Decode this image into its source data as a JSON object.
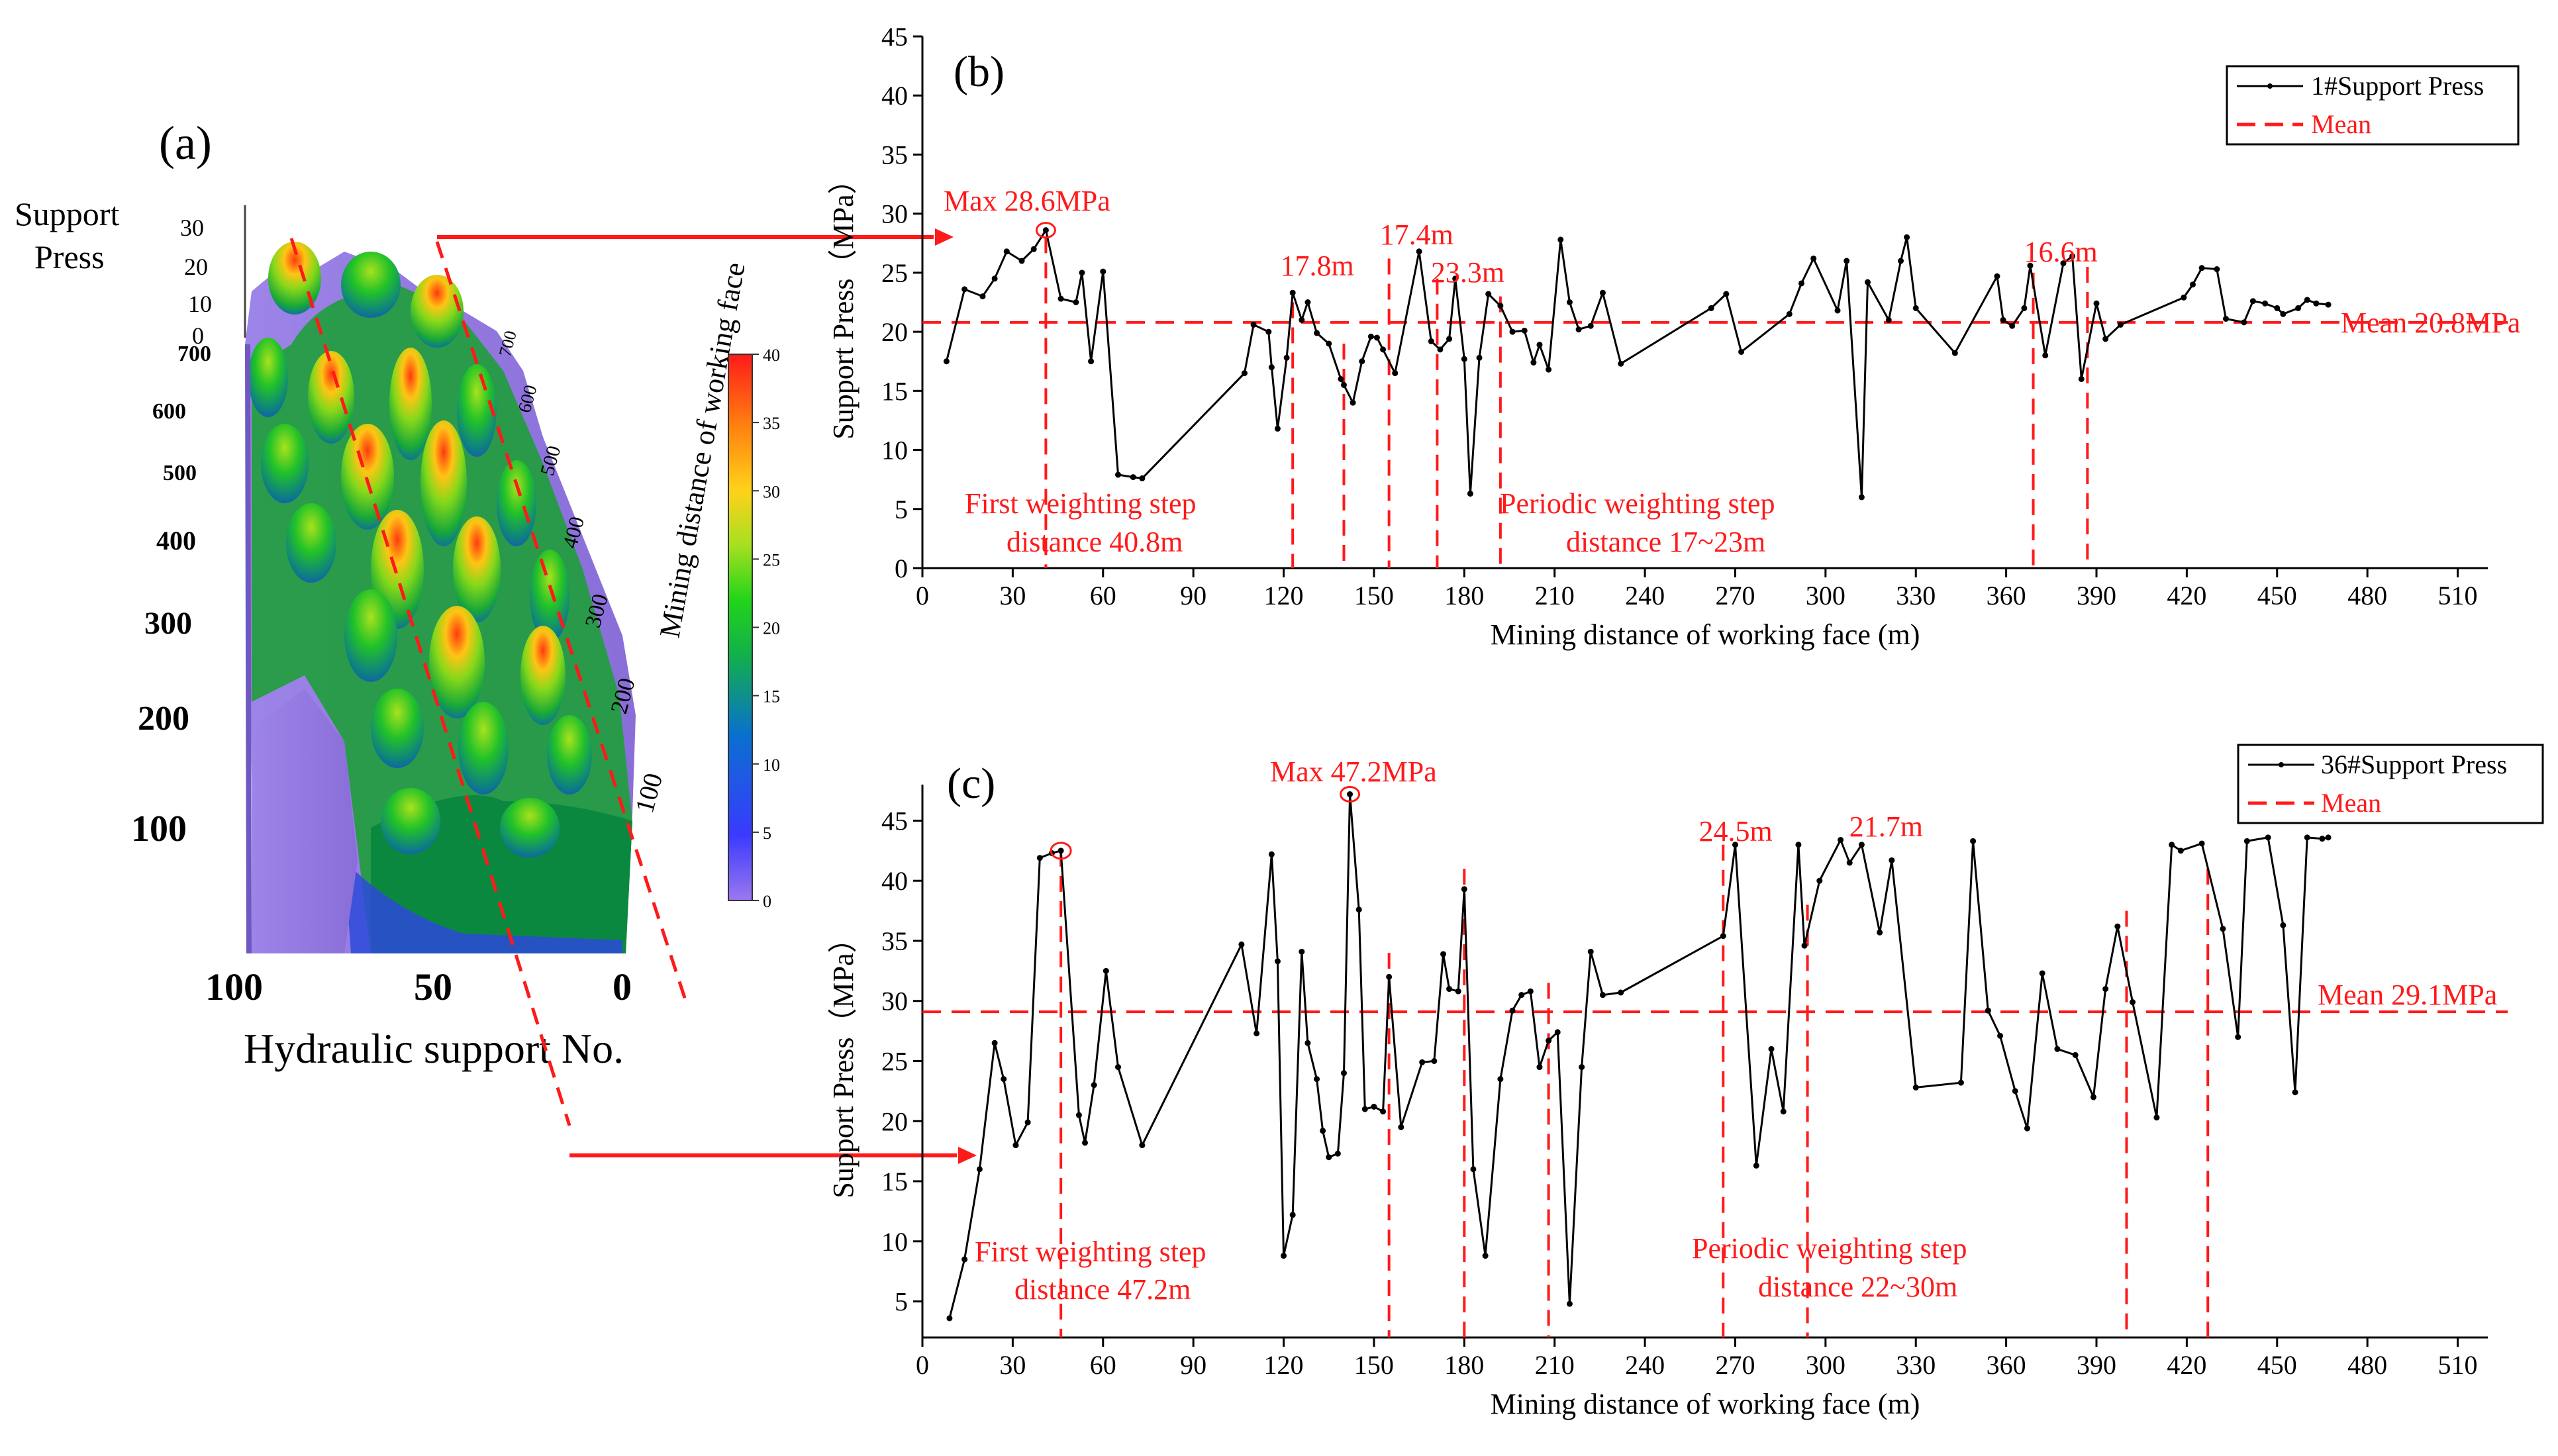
{
  "panel_a": {
    "label": "(a)",
    "z_title_line1": "Support",
    "z_title_line2": "Press",
    "z_ticks": [
      "30",
      "20",
      "10",
      "0"
    ],
    "y_ticks": [
      "700",
      "600",
      "500",
      "400",
      "300",
      "200",
      "100"
    ],
    "depth_ticks": [
      "100",
      "200",
      "300",
      "400",
      "500",
      "600",
      "700"
    ],
    "depth_axis_title": "Mining distance of working face",
    "x_ticks": [
      "100",
      "50",
      "0"
    ],
    "x_axis_title": "Hydraulic support No.",
    "colorbar_ticks": [
      "40",
      "35",
      "30",
      "25",
      "20",
      "15",
      "10",
      "5",
      "0"
    ]
  },
  "chart_data": [
    {
      "type": "line",
      "panel_label": "(b)",
      "xlabel": "Mining distance of working face (m)",
      "ylabel": "Support Press（MPa）",
      "xlim": [
        0,
        520
      ],
      "ylim": [
        0,
        45
      ],
      "xticks": [
        0,
        30,
        60,
        90,
        120,
        150,
        180,
        210,
        240,
        270,
        300,
        330,
        360,
        390,
        420,
        450,
        480,
        510
      ],
      "yticks": [
        0,
        5,
        10,
        15,
        20,
        25,
        30,
        35,
        40,
        45
      ],
      "legend": {
        "position": "top-right",
        "series_label": "1#Support Press",
        "mean_label": "Mean"
      },
      "series": [
        {
          "name": "1#Support Press",
          "x": [
            8,
            14,
            20,
            24,
            28,
            33,
            37,
            41,
            46,
            51,
            53,
            56,
            60,
            65,
            70,
            73,
            107,
            110,
            115,
            116,
            118,
            121,
            123,
            126,
            128,
            131,
            135,
            139,
            140,
            143,
            146,
            149,
            151,
            153,
            157,
            165,
            169,
            172,
            175,
            177,
            180,
            182,
            185,
            188,
            192,
            196,
            200,
            203,
            205,
            208,
            212,
            215,
            218,
            222,
            226,
            232,
            262,
            267,
            272,
            288,
            292,
            296,
            304,
            307,
            312,
            314,
            321,
            325,
            327,
            330,
            343,
            357,
            359,
            362,
            366,
            368,
            373,
            379,
            382,
            385,
            390,
            393,
            398,
            419,
            422,
            425,
            430,
            433,
            439,
            442,
            446,
            450,
            452,
            457,
            460,
            463,
            467
          ],
          "y": [
            17.5,
            23.6,
            23.0,
            24.5,
            26.8,
            26.0,
            27.0,
            28.6,
            22.8,
            22.5,
            25.0,
            17.5,
            25.1,
            7.9,
            7.7,
            7.6,
            16.5,
            20.6,
            20.0,
            17.0,
            11.8,
            17.8,
            23.3,
            21.0,
            22.5,
            19.9,
            19.0,
            16.0,
            15.5,
            14.0,
            17.5,
            19.6,
            19.5,
            18.5,
            16.5,
            26.8,
            19.2,
            18.5,
            19.4,
            24.5,
            17.7,
            6.3,
            17.8,
            23.2,
            22.2,
            20.0,
            20.1,
            17.4,
            18.9,
            16.8,
            27.8,
            22.5,
            20.2,
            20.5,
            23.3,
            17.3,
            22.0,
            23.2,
            18.3,
            21.5,
            24.1,
            26.2,
            21.8,
            26.0,
            6.0,
            24.2,
            21.0,
            26.0,
            28.0,
            22.0,
            18.2,
            24.7,
            21.0,
            20.5,
            22.0,
            25.6,
            18.0,
            25.8,
            26.4,
            16.0,
            22.4,
            19.4,
            20.6,
            22.9,
            24.0,
            25.4,
            25.3,
            21.1,
            20.8,
            22.6,
            22.4,
            22.0,
            21.5,
            22.0,
            22.7,
            22.4,
            22.3
          ]
        }
      ],
      "mean_value": 20.8,
      "vlines_x": [
        41,
        123,
        140,
        155,
        171,
        192,
        369,
        387
      ],
      "annotations": [
        {
          "text": "Max 28.6MPa",
          "x": 41,
          "y": 28.6
        },
        {
          "text": "17.8m",
          "x": 131
        },
        {
          "text": "17.4m",
          "x": 164
        },
        {
          "text": "23.3m",
          "x": 181
        },
        {
          "text": "16.6m",
          "x": 378
        },
        {
          "text": "Mean 20.8MPa"
        },
        {
          "text_line1": "First weighting step",
          "text_line2": "distance 40.8m"
        },
        {
          "text_line1": "Periodic weighting step",
          "text_line2": "distance 17~23m"
        }
      ]
    },
    {
      "type": "line",
      "panel_label": "(c)",
      "xlabel": "Mining distance of working face (m)",
      "ylabel": "Support Press（MPa）",
      "xlim": [
        0,
        520
      ],
      "ylim": [
        2,
        48
      ],
      "xticks": [
        0,
        30,
        60,
        90,
        120,
        150,
        180,
        210,
        240,
        270,
        300,
        330,
        360,
        390,
        420,
        450,
        480,
        510
      ],
      "yticks": [
        5,
        10,
        15,
        20,
        25,
        30,
        35,
        40,
        45
      ],
      "legend": {
        "position": "top-right",
        "series_label": "36#Support Press",
        "mean_label": "Mean"
      },
      "series": [
        {
          "name": "36#Support Press",
          "x": [
            9,
            14,
            19,
            24,
            27,
            31,
            35,
            39,
            43,
            46,
            52,
            54,
            57,
            61,
            65,
            73,
            106,
            111,
            116,
            118,
            120,
            123,
            126,
            128,
            131,
            133,
            135,
            138,
            140,
            142,
            145,
            147,
            150,
            153,
            155,
            159,
            166,
            170,
            173,
            175,
            178,
            180,
            183,
            187,
            192,
            196,
            199,
            202,
            205,
            208,
            211,
            215,
            219,
            222,
            226,
            232,
            266,
            270,
            277,
            282,
            286,
            291,
            293,
            298,
            305,
            308,
            312,
            318,
            322,
            330,
            345,
            349,
            354,
            358,
            363,
            367,
            372,
            377,
            383,
            389,
            393,
            397,
            402,
            410,
            415,
            418,
            425,
            432,
            437,
            440,
            447,
            452,
            456,
            460,
            465,
            467
          ],
          "y": [
            3.6,
            8.5,
            16,
            26.5,
            23.5,
            18,
            19.9,
            41.9,
            42.3,
            42.5,
            20.5,
            18.2,
            23,
            32.5,
            24.5,
            18,
            34.7,
            27.3,
            42.2,
            33.3,
            8.8,
            12.2,
            34.1,
            26.5,
            23.5,
            19.2,
            17.0,
            17.3,
            24,
            47.2,
            37.6,
            21,
            21.2,
            20.8,
            32.0,
            19.5,
            24.9,
            25.0,
            33.9,
            31.0,
            30.8,
            39.3,
            16.0,
            8.8,
            23.5,
            29.2,
            30.5,
            30.8,
            24.5,
            26.7,
            27.4,
            4.8,
            24.5,
            34.1,
            30.5,
            30.7,
            35.4,
            43.0,
            16.3,
            26,
            20.8,
            43.0,
            34.6,
            40.0,
            43.4,
            41.5,
            43.0,
            35.7,
            41.7,
            22.8,
            23.2,
            43.3,
            29.2,
            27.1,
            22.5,
            19.4,
            32.3,
            26.0,
            25.5,
            22.0,
            31.0,
            36.2,
            29.9,
            20.3,
            43.0,
            42.5,
            43.1,
            36.0,
            27.0,
            43.3,
            43.6,
            36.3,
            22.4,
            43.6,
            43.5,
            43.6
          ]
        }
      ],
      "mean_value": 29.1,
      "vlines_x": [
        46,
        155,
        180,
        208,
        266,
        294,
        400,
        427
      ],
      "annotations": [
        {
          "text": "Max 47.2MPa",
          "x": 142,
          "y": 47.2
        },
        {
          "text": "24.5m",
          "x": 270
        },
        {
          "text": "21.7m",
          "x": 320
        },
        {
          "text": "Mean 29.1MPa"
        },
        {
          "text_line1": "First weighting step",
          "text_line2": "distance 47.2m"
        },
        {
          "text_line1": "Periodic weighting step",
          "text_line2": "distance 22~30m"
        }
      ]
    }
  ],
  "colors": {
    "axis": "#000000",
    "series_line": "#000000",
    "annotation_red": "#ff1a1a",
    "surface_low": "#8f6fe0",
    "surface_mid": "#1aa81a",
    "surface_high": "#ffcc00",
    "surface_peak": "#ff2200"
  }
}
